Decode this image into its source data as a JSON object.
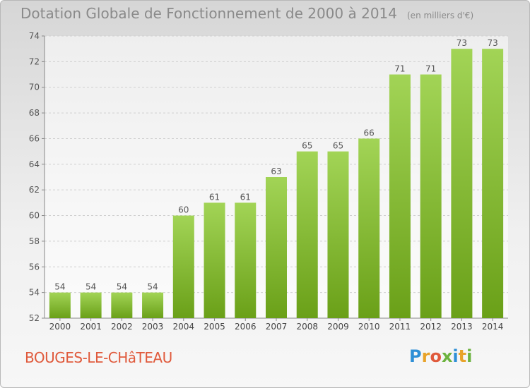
{
  "chart_data": {
    "type": "bar",
    "title": "Dotation Globale de Fonctionnement de 2000 à 2014",
    "subtitle": "(en milliers d'€)",
    "categories": [
      "2000",
      "2001",
      "2002",
      "2003",
      "2004",
      "2005",
      "2006",
      "2007",
      "2008",
      "2009",
      "2010",
      "2011",
      "2012",
      "2013",
      "2014"
    ],
    "values": [
      54,
      54,
      54,
      54,
      60,
      61,
      61,
      63,
      65,
      65,
      66,
      71,
      71,
      73,
      73
    ],
    "ylim": [
      52,
      74
    ],
    "yticks": [
      52,
      54,
      56,
      58,
      60,
      62,
      64,
      66,
      68,
      70,
      72,
      74
    ],
    "grid": true,
    "bar_color": "#8cc43c"
  },
  "commune": "BOUGES-LE-CHâTEAU",
  "logo": {
    "letters": [
      "P",
      "r",
      "o",
      "x",
      "i",
      "t",
      "i"
    ],
    "colors": [
      "#2e8fd6",
      "#e8a32a",
      "#e05a3c",
      "#6cb33f",
      "#2e8fd6",
      "#e8a32a",
      "#6cb33f"
    ]
  }
}
